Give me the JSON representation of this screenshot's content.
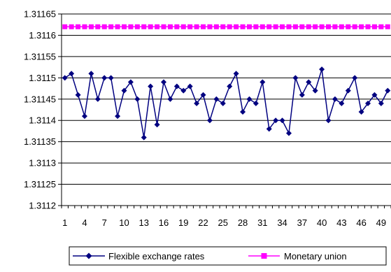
{
  "chart_data": {
    "type": "line",
    "title": "",
    "xlabel": "",
    "ylabel": "",
    "ylim": [
      1.3112,
      1.31165
    ],
    "yticks": [
      "1.31165",
      "1.3116",
      "1.31155",
      "1.3115",
      "1.31145",
      "1.3114",
      "1.31135",
      "1.3113",
      "1.31125",
      "1.3112"
    ],
    "xticks": [
      "1",
      "4",
      "7",
      "10",
      "13",
      "16",
      "19",
      "22",
      "25",
      "28",
      "31",
      "34",
      "37",
      "40",
      "43",
      "46",
      "49"
    ],
    "grid": "horizontal",
    "legend_position": "bottom",
    "series": [
      {
        "name": "Flexible exchange rates",
        "color": "#000080",
        "marker": "diamond",
        "values": [
          1.3115,
          1.31151,
          1.31146,
          1.31141,
          1.31151,
          1.31145,
          1.3115,
          1.3115,
          1.31141,
          1.31147,
          1.31149,
          1.31145,
          1.31136,
          1.31148,
          1.31139,
          1.31149,
          1.31145,
          1.31148,
          1.31147,
          1.31148,
          1.31144,
          1.31146,
          1.3114,
          1.31145,
          1.31144,
          1.31148,
          1.31151,
          1.31142,
          1.31145,
          1.31144,
          1.31149,
          1.31138,
          1.3114,
          1.3114,
          1.31137,
          1.3115,
          1.31146,
          1.31149,
          1.31147,
          1.31152,
          1.3114,
          1.31145,
          1.31144,
          1.31147,
          1.3115,
          1.31142,
          1.31144,
          1.31146,
          1.31144,
          1.31147
        ]
      },
      {
        "name": "Monetary union",
        "color": "#ff00ff",
        "marker": "square",
        "values": [
          1.31162,
          1.31162,
          1.31162,
          1.31162,
          1.31162,
          1.31162,
          1.31162,
          1.31162,
          1.31162,
          1.31162,
          1.31162,
          1.31162,
          1.31162,
          1.31162,
          1.31162,
          1.31162,
          1.31162,
          1.31162,
          1.31162,
          1.31162,
          1.31162,
          1.31162,
          1.31162,
          1.31162,
          1.31162,
          1.31162,
          1.31162,
          1.31162,
          1.31162,
          1.31162,
          1.31162,
          1.31162,
          1.31162,
          1.31162,
          1.31162,
          1.31162,
          1.31162,
          1.31162,
          1.31162,
          1.31162,
          1.31162,
          1.31162,
          1.31162,
          1.31162,
          1.31162,
          1.31162,
          1.31162,
          1.31162,
          1.31162,
          1.31162
        ]
      }
    ]
  }
}
